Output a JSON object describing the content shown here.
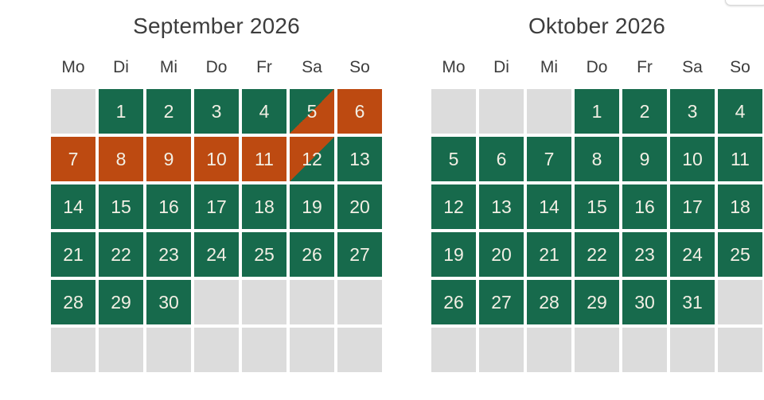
{
  "colors": {
    "available": "#176a4c",
    "booked": "#bd4a11",
    "empty": "#dcdcdc",
    "heading_text": "#3d3d3d",
    "day_number_text": "#f2efe4"
  },
  "calendars": [
    {
      "title": "September 2026",
      "weekdays": [
        "Mo",
        "Di",
        "Mi",
        "Do",
        "Fr",
        "Sa",
        "So"
      ],
      "cells": [
        {
          "day": "",
          "state": "empty"
        },
        {
          "day": "1",
          "state": "available"
        },
        {
          "day": "2",
          "state": "available"
        },
        {
          "day": "3",
          "state": "available"
        },
        {
          "day": "4",
          "state": "available"
        },
        {
          "day": "5",
          "state": "changeover-start"
        },
        {
          "day": "6",
          "state": "booked"
        },
        {
          "day": "7",
          "state": "booked"
        },
        {
          "day": "8",
          "state": "booked"
        },
        {
          "day": "9",
          "state": "booked"
        },
        {
          "day": "10",
          "state": "booked"
        },
        {
          "day": "11",
          "state": "booked"
        },
        {
          "day": "12",
          "state": "changeover-end"
        },
        {
          "day": "13",
          "state": "available"
        },
        {
          "day": "14",
          "state": "available"
        },
        {
          "day": "15",
          "state": "available"
        },
        {
          "day": "16",
          "state": "available"
        },
        {
          "day": "17",
          "state": "available"
        },
        {
          "day": "18",
          "state": "available"
        },
        {
          "day": "19",
          "state": "available"
        },
        {
          "day": "20",
          "state": "available"
        },
        {
          "day": "21",
          "state": "available"
        },
        {
          "day": "22",
          "state": "available"
        },
        {
          "day": "23",
          "state": "available"
        },
        {
          "day": "24",
          "state": "available"
        },
        {
          "day": "25",
          "state": "available"
        },
        {
          "day": "26",
          "state": "available"
        },
        {
          "day": "27",
          "state": "available"
        },
        {
          "day": "28",
          "state": "available"
        },
        {
          "day": "29",
          "state": "available"
        },
        {
          "day": "30",
          "state": "available"
        },
        {
          "day": "",
          "state": "empty"
        },
        {
          "day": "",
          "state": "empty"
        },
        {
          "day": "",
          "state": "empty"
        },
        {
          "day": "",
          "state": "empty"
        },
        {
          "day": "",
          "state": "empty"
        },
        {
          "day": "",
          "state": "empty"
        },
        {
          "day": "",
          "state": "empty"
        },
        {
          "day": "",
          "state": "empty"
        },
        {
          "day": "",
          "state": "empty"
        },
        {
          "day": "",
          "state": "empty"
        },
        {
          "day": "",
          "state": "empty"
        }
      ]
    },
    {
      "title": "Oktober 2026",
      "weekdays": [
        "Mo",
        "Di",
        "Mi",
        "Do",
        "Fr",
        "Sa",
        "So"
      ],
      "cells": [
        {
          "day": "",
          "state": "empty"
        },
        {
          "day": "",
          "state": "empty"
        },
        {
          "day": "",
          "state": "empty"
        },
        {
          "day": "1",
          "state": "available"
        },
        {
          "day": "2",
          "state": "available"
        },
        {
          "day": "3",
          "state": "available"
        },
        {
          "day": "4",
          "state": "available"
        },
        {
          "day": "5",
          "state": "available"
        },
        {
          "day": "6",
          "state": "available"
        },
        {
          "day": "7",
          "state": "available"
        },
        {
          "day": "8",
          "state": "available"
        },
        {
          "day": "9",
          "state": "available"
        },
        {
          "day": "10",
          "state": "available"
        },
        {
          "day": "11",
          "state": "available"
        },
        {
          "day": "12",
          "state": "available"
        },
        {
          "day": "13",
          "state": "available"
        },
        {
          "day": "14",
          "state": "available"
        },
        {
          "day": "15",
          "state": "available"
        },
        {
          "day": "16",
          "state": "available"
        },
        {
          "day": "17",
          "state": "available"
        },
        {
          "day": "18",
          "state": "available"
        },
        {
          "day": "19",
          "state": "available"
        },
        {
          "day": "20",
          "state": "available"
        },
        {
          "day": "21",
          "state": "available"
        },
        {
          "day": "22",
          "state": "available"
        },
        {
          "day": "23",
          "state": "available"
        },
        {
          "day": "24",
          "state": "available"
        },
        {
          "day": "25",
          "state": "available"
        },
        {
          "day": "26",
          "state": "available"
        },
        {
          "day": "27",
          "state": "available"
        },
        {
          "day": "28",
          "state": "available"
        },
        {
          "day": "29",
          "state": "available"
        },
        {
          "day": "30",
          "state": "available"
        },
        {
          "day": "31",
          "state": "available"
        },
        {
          "day": "",
          "state": "empty"
        },
        {
          "day": "",
          "state": "empty"
        },
        {
          "day": "",
          "state": "empty"
        },
        {
          "day": "",
          "state": "empty"
        },
        {
          "day": "",
          "state": "empty"
        },
        {
          "day": "",
          "state": "empty"
        },
        {
          "day": "",
          "state": "empty"
        },
        {
          "day": "",
          "state": "empty"
        }
      ]
    }
  ]
}
